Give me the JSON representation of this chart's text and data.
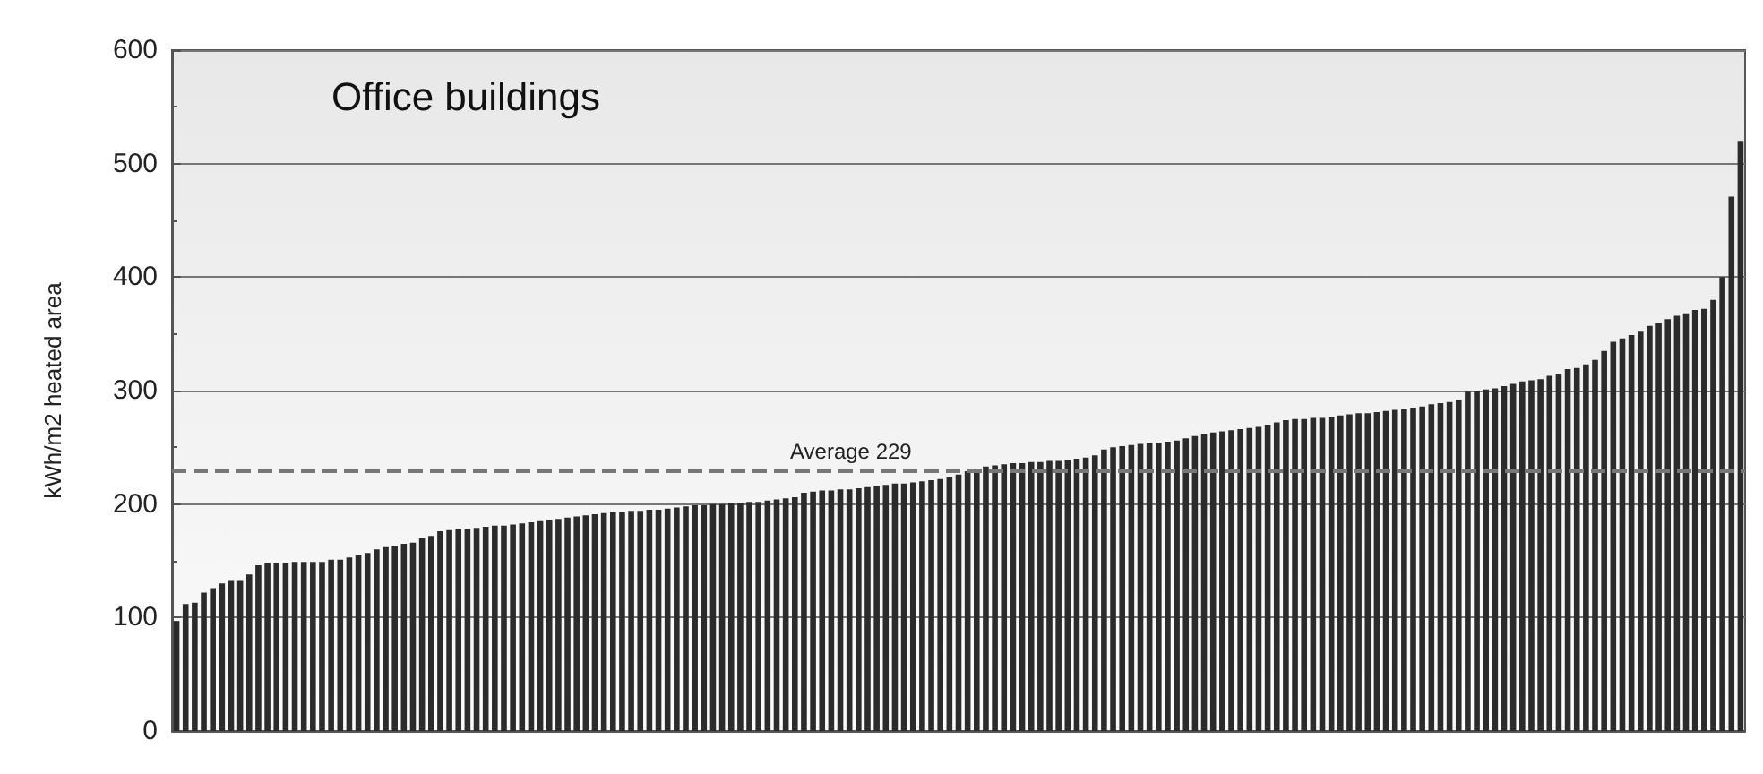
{
  "chart_data": {
    "type": "bar",
    "title": "Office buildings",
    "ylabel": "kWh/m2 heated area",
    "categories": [
      null,
      null,
      null,
      null,
      null,
      null,
      null,
      null,
      null,
      null,
      null,
      null,
      null,
      null,
      null,
      null,
      null,
      null,
      null,
      null,
      null,
      null,
      null,
      null,
      null,
      null,
      null,
      null,
      null,
      null,
      null,
      null,
      null,
      null,
      null,
      null,
      null,
      null,
      null,
      null,
      null,
      null,
      null,
      null,
      null,
      null,
      null,
      null,
      null,
      null,
      null,
      null,
      null,
      null,
      null,
      null,
      null,
      null,
      null,
      null,
      null,
      null,
      null,
      null,
      null,
      null,
      null,
      null,
      null,
      null,
      null,
      null,
      null,
      null,
      null,
      null,
      null,
      null,
      null,
      null,
      null,
      null,
      null,
      null,
      null,
      null,
      null,
      null,
      null,
      null,
      null,
      null,
      null,
      null,
      null,
      null,
      null,
      null,
      null,
      null,
      null,
      null,
      null,
      null,
      null,
      null,
      null,
      null,
      null,
      null,
      null,
      null,
      null,
      null,
      null,
      null,
      null,
      null,
      null,
      null,
      null,
      null,
      null,
      null,
      null,
      null,
      null,
      null,
      null,
      null,
      null,
      null,
      null,
      null,
      null,
      null,
      null,
      null,
      null,
      null,
      null,
      null,
      null,
      null,
      null,
      null,
      null,
      null,
      null,
      null,
      null,
      null,
      null,
      null,
      null,
      null,
      null,
      null,
      null,
      null,
      null,
      null,
      null,
      null,
      null,
      null,
      null,
      null,
      null,
      null,
      null,
      null,
      null
    ],
    "values": [
      97,
      112,
      113,
      122,
      126,
      130,
      133,
      133,
      138,
      146,
      148,
      148,
      148,
      149,
      149,
      149,
      149,
      151,
      151,
      153,
      155,
      157,
      160,
      162,
      163,
      165,
      166,
      170,
      172,
      176,
      177,
      178,
      178,
      179,
      180,
      181,
      181,
      182,
      183,
      184,
      185,
      186,
      187,
      188,
      189,
      190,
      191,
      192,
      193,
      193,
      194,
      194,
      195,
      195,
      196,
      197,
      198,
      199,
      199,
      200,
      200,
      201,
      201,
      202,
      202,
      203,
      204,
      205,
      206,
      210,
      211,
      212,
      212,
      213,
      213,
      214,
      215,
      216,
      217,
      218,
      218,
      219,
      220,
      221,
      222,
      224,
      226,
      229,
      231,
      233,
      234,
      235,
      236,
      236,
      237,
      237,
      238,
      238,
      239,
      240,
      241,
      243,
      248,
      250,
      251,
      252,
      253,
      254,
      254,
      255,
      256,
      258,
      260,
      262,
      263,
      264,
      265,
      266,
      267,
      268,
      270,
      272,
      274,
      275,
      275,
      276,
      276,
      277,
      278,
      279,
      280,
      280,
      281,
      282,
      283,
      284,
      285,
      286,
      288,
      289,
      290,
      292,
      299,
      300,
      301,
      302,
      304,
      306,
      308,
      309,
      310,
      313,
      315,
      319,
      320,
      323,
      327,
      335,
      343,
      346,
      349,
      352,
      357,
      360,
      363,
      366,
      368,
      371,
      372,
      380,
      400,
      471,
      520
    ],
    "color": "#2b2b2b",
    "ylim": [
      0,
      600
    ],
    "yticks": [
      0,
      100,
      200,
      300,
      400,
      500,
      600
    ],
    "grid": "y",
    "ref_lines": [
      {
        "axis": "y",
        "value": 229,
        "label": "Average 229",
        "line_style": "dashed",
        "color": "#777777"
      }
    ]
  }
}
